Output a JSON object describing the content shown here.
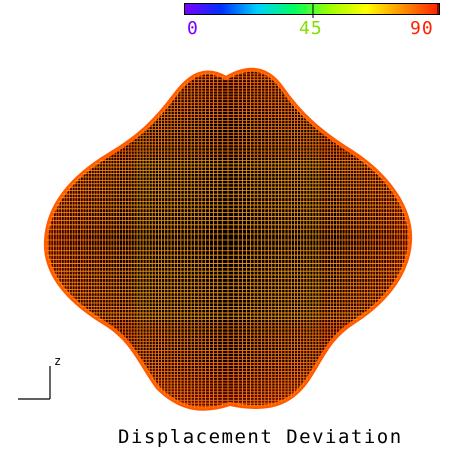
{
  "colorbar": {
    "stops": [
      "#7a00ff",
      "#0030ff",
      "#00d0ff",
      "#00ff60",
      "#a0ff00",
      "#ffff00",
      "#ff9000",
      "#ff2000"
    ],
    "ticks": [
      {
        "label": "0",
        "color": "#7a00ff"
      },
      {
        "label": "45",
        "color": "#80e000"
      },
      {
        "label": "90",
        "color": "#ff2000"
      }
    ]
  },
  "axis": {
    "label": "z"
  },
  "caption": "Displacement Deviation",
  "colors": {
    "mesh_outer": "#ff6a00",
    "mesh_inner": "#ff9a10",
    "dark": "#000000"
  }
}
